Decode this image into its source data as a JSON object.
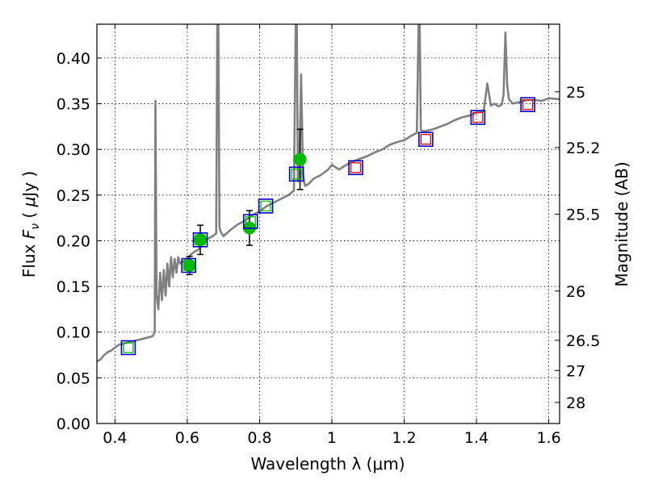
{
  "chart_data": {
    "type": "line",
    "xlabel": "Wavelength  λ (μm)",
    "ylabel": "Flux  Fν  ( μJy )",
    "ylabel_parts": {
      "left": "Flux  ",
      "sym": "F",
      "sub": "ν",
      "mid": "  ( ",
      "mu": "μ",
      "unit": "Jy )"
    },
    "y2label": "Magnitude (AB)",
    "xlim": [
      0.35,
      1.63
    ],
    "ylim": [
      0.0,
      0.437
    ],
    "grid": true,
    "x_ticks": [
      0.4,
      0.6,
      0.8,
      1.0,
      1.2,
      1.4,
      1.6
    ],
    "x_tick_labels": [
      "0.4",
      "0.6",
      "0.8",
      "1",
      "1.2",
      "1.4",
      "1.6"
    ],
    "y_ticks": [
      0.0,
      0.05,
      0.1,
      0.15,
      0.2,
      0.25,
      0.3,
      0.35,
      0.4
    ],
    "y_tick_labels": [
      "0.00",
      "0.05",
      "0.10",
      "0.15",
      "0.20",
      "0.25",
      "0.30",
      "0.35",
      "0.40"
    ],
    "y2_ticks": [
      {
        "label": "25",
        "flux": 0.363
      },
      {
        "label": "25.2",
        "flux": 0.302
      },
      {
        "label": "25.5",
        "flux": 0.229
      },
      {
        "label": "26",
        "flux": 0.145
      },
      {
        "label": "26.5",
        "flux": 0.091
      },
      {
        "label": "27",
        "flux": 0.058
      },
      {
        "label": "28",
        "flux": 0.023
      }
    ],
    "series": [
      {
        "kind": "spectrum",
        "color": "#808080",
        "x": [
          0.35,
          0.36,
          0.37,
          0.38,
          0.39,
          0.4,
          0.41,
          0.42,
          0.43,
          0.44,
          0.45,
          0.46,
          0.47,
          0.48,
          0.49,
          0.5,
          0.505,
          0.51,
          0.512,
          0.515,
          0.52,
          0.525,
          0.53,
          0.535,
          0.54,
          0.545,
          0.55,
          0.555,
          0.56,
          0.565,
          0.57,
          0.575,
          0.58,
          0.59,
          0.6,
          0.61,
          0.62,
          0.63,
          0.64,
          0.65,
          0.66,
          0.67,
          0.68,
          0.683,
          0.686,
          0.689,
          0.692,
          0.7,
          0.72,
          0.74,
          0.76,
          0.78,
          0.8,
          0.82,
          0.84,
          0.86,
          0.88,
          0.895,
          0.9,
          0.903,
          0.906,
          0.91,
          0.915,
          0.92,
          0.923,
          0.926,
          0.935,
          0.95,
          0.97,
          0.99,
          1.0,
          1.02,
          1.04,
          1.06,
          1.08,
          1.1,
          1.12,
          1.14,
          1.16,
          1.18,
          1.2,
          1.22,
          1.235,
          1.24,
          1.243,
          1.246,
          1.25,
          1.26,
          1.28,
          1.3,
          1.32,
          1.34,
          1.36,
          1.38,
          1.4,
          1.42,
          1.43,
          1.44,
          1.45,
          1.46,
          1.47,
          1.475,
          1.48,
          1.485,
          1.49,
          1.5,
          1.52,
          1.54,
          1.56,
          1.58,
          1.6,
          1.63
        ],
        "y": [
          0.068,
          0.07,
          0.075,
          0.078,
          0.08,
          0.083,
          0.086,
          0.087,
          0.088,
          0.089,
          0.09,
          0.091,
          0.092,
          0.093,
          0.094,
          0.095,
          0.096,
          0.1,
          0.353,
          0.14,
          0.125,
          0.165,
          0.135,
          0.168,
          0.14,
          0.175,
          0.15,
          0.182,
          0.16,
          0.18,
          0.165,
          0.182,
          0.175,
          0.178,
          0.18,
          0.185,
          0.188,
          0.19,
          0.195,
          0.2,
          0.203,
          0.205,
          0.208,
          0.437,
          0.437,
          0.215,
          0.21,
          0.205,
          0.212,
          0.218,
          0.222,
          0.228,
          0.232,
          0.238,
          0.242,
          0.246,
          0.25,
          0.255,
          0.437,
          0.437,
          0.265,
          0.275,
          0.382,
          0.275,
          0.265,
          0.26,
          0.262,
          0.268,
          0.272,
          0.278,
          0.283,
          0.278,
          0.283,
          0.287,
          0.29,
          0.293,
          0.297,
          0.3,
          0.305,
          0.308,
          0.31,
          0.315,
          0.318,
          0.437,
          0.437,
          0.322,
          0.32,
          0.32,
          0.322,
          0.325,
          0.328,
          0.332,
          0.335,
          0.337,
          0.34,
          0.342,
          0.372,
          0.348,
          0.35,
          0.347,
          0.349,
          0.36,
          0.428,
          0.37,
          0.355,
          0.35,
          0.352,
          0.354,
          0.354,
          0.353,
          0.356,
          0.355
        ]
      },
      {
        "kind": "filled-circles-errorbars",
        "color": "#00bb00",
        "x": [
          0.606,
          0.636,
          0.772,
          0.912
        ],
        "y": [
          0.173,
          0.201,
          0.214,
          0.289
        ],
        "err": [
          0.01,
          0.016,
          0.019,
          0.033
        ]
      },
      {
        "kind": "green-open-squares",
        "color": "#00bb00",
        "x": [
          0.437,
          0.604,
          0.636,
          0.775,
          0.817,
          0.902
        ],
        "y": [
          0.083,
          0.173,
          0.201,
          0.221,
          0.238,
          0.273
        ]
      },
      {
        "kind": "red-open-squares",
        "color": "#dd0000",
        "x": [
          1.066,
          1.26,
          1.404,
          1.542
        ],
        "y": [
          0.28,
          0.311,
          0.335,
          0.349
        ]
      },
      {
        "kind": "blue-open-squares",
        "color": "#0000cc",
        "x": [
          0.437,
          0.604,
          0.636,
          0.775,
          0.817,
          0.902,
          1.066,
          1.26,
          1.404,
          1.542
        ],
        "y": [
          0.083,
          0.173,
          0.201,
          0.221,
          0.238,
          0.273,
          0.28,
          0.311,
          0.335,
          0.349
        ]
      }
    ]
  }
}
